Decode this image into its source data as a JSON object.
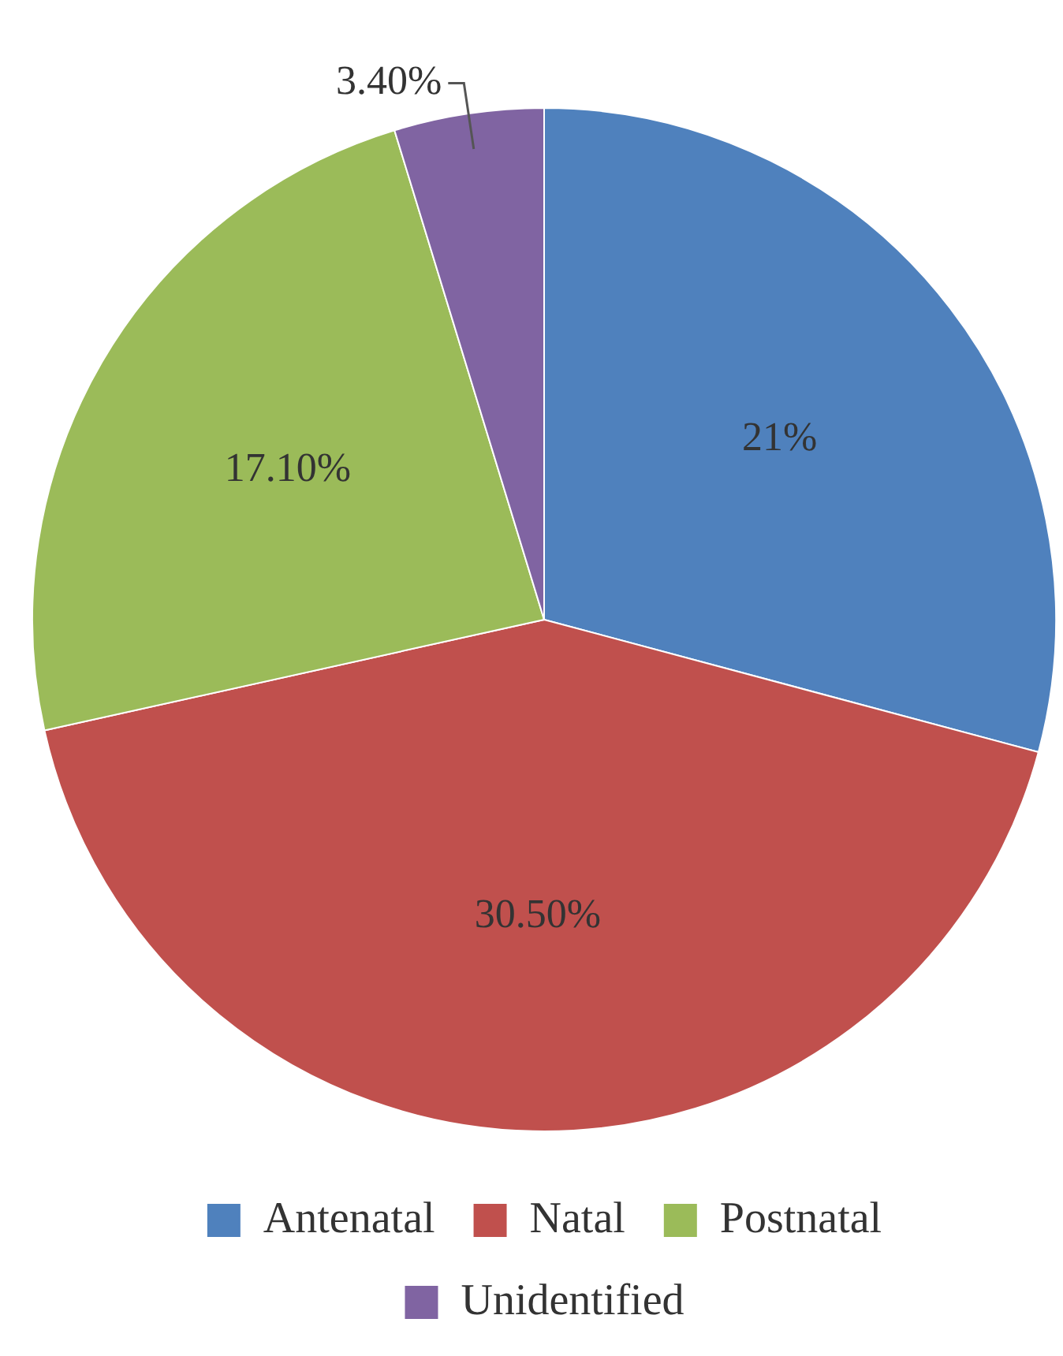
{
  "chart_data": {
    "type": "pie",
    "categories": [
      "Antenatal",
      "Natal",
      "Postnatal",
      "Unidentified"
    ],
    "values": [
      21,
      30.5,
      17.1,
      3.4
    ],
    "value_labels": [
      "21%",
      "30.50%",
      "17.10%",
      "3.40%"
    ],
    "colors": [
      "#4f81bd",
      "#c0504d",
      "#9bbb59",
      "#8064a2"
    ],
    "legend": "bottom"
  }
}
